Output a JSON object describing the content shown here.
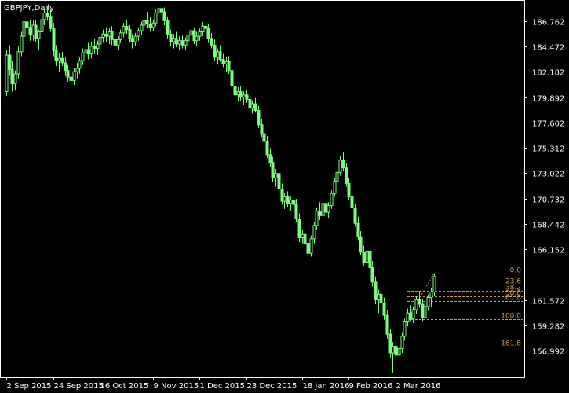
{
  "chart_data": {
    "type": "candlestick",
    "title": "GBPJPY,Daily",
    "y_ticks": [
      "186.762",
      "184.472",
      "182.182",
      "179.892",
      "177.602",
      "175.312",
      "173.022",
      "170.732",
      "168.442",
      "166.152",
      "161.572",
      "159.282",
      "156.992"
    ],
    "x_ticks": [
      "2 Sep 2015",
      "24 Sep 2015",
      "16 Oct 2015",
      "9 Nov 2015",
      "1 Dec 2015",
      "23 Dec 2015",
      "18 Jan 2016",
      "9 Feb 2016",
      "2 Mar 2016"
    ],
    "ylim": [
      154.6,
      188.6
    ],
    "grid": false,
    "colors": {
      "background": "#000000",
      "axis": "#ffffff",
      "candle": "#7cfc7c",
      "fib": "#d39a50"
    },
    "fibonacci": {
      "levels": [
        {
          "label": "0.0",
          "price": 163.98
        },
        {
          "label": "23.6",
          "price": 163.01
        },
        {
          "label": "38.2",
          "price": 162.41
        },
        {
          "label": "50.0",
          "price": 161.93
        },
        {
          "label": "61.8",
          "price": 161.45
        },
        {
          "label": "100.0",
          "price": 159.88
        },
        {
          "label": "161.8",
          "price": 157.35
        }
      ]
    },
    "candles": [
      [
        180.4,
        184.2,
        180.0,
        183.7
      ],
      [
        183.7,
        184.6,
        181.8,
        182.4
      ],
      [
        182.4,
        183.2,
        180.4,
        181.1
      ],
      [
        181.1,
        182.3,
        180.5,
        182.0
      ],
      [
        182.0,
        184.5,
        181.5,
        184.0
      ],
      [
        184.0,
        185.8,
        183.6,
        185.4
      ],
      [
        185.4,
        187.4,
        184.8,
        186.7
      ],
      [
        186.7,
        187.3,
        185.8,
        186.2
      ],
      [
        186.2,
        186.9,
        185.0,
        185.5
      ],
      [
        185.5,
        186.8,
        185.0,
        186.4
      ],
      [
        186.4,
        186.9,
        184.9,
        185.2
      ],
      [
        185.2,
        186.0,
        184.1,
        185.8
      ],
      [
        185.8,
        187.3,
        185.4,
        186.9
      ],
      [
        186.9,
        187.9,
        186.4,
        187.5
      ],
      [
        187.5,
        188.1,
        186.8,
        187.2
      ],
      [
        187.2,
        187.8,
        185.8,
        186.1
      ],
      [
        186.1,
        186.6,
        183.6,
        184.1
      ],
      [
        184.1,
        184.6,
        182.7,
        183.2
      ],
      [
        183.2,
        183.9,
        182.2,
        183.4
      ],
      [
        183.4,
        184.0,
        182.7,
        183.0
      ],
      [
        183.0,
        183.5,
        181.8,
        182.3
      ],
      [
        182.3,
        182.8,
        181.3,
        181.7
      ],
      [
        181.7,
        182.2,
        181.0,
        181.4
      ],
      [
        181.4,
        182.5,
        181.0,
        182.2
      ],
      [
        182.2,
        183.0,
        181.6,
        182.5
      ],
      [
        182.5,
        183.5,
        182.0,
        183.2
      ],
      [
        183.2,
        184.3,
        182.8,
        183.9
      ],
      [
        183.9,
        184.6,
        183.2,
        184.2
      ],
      [
        184.2,
        184.8,
        183.3,
        183.8
      ],
      [
        183.8,
        184.9,
        183.4,
        184.5
      ],
      [
        184.5,
        185.2,
        183.8,
        184.3
      ],
      [
        184.3,
        185.0,
        183.7,
        184.7
      ],
      [
        184.7,
        185.6,
        184.3,
        185.3
      ],
      [
        185.3,
        186.0,
        184.8,
        185.6
      ],
      [
        185.6,
        186.2,
        184.9,
        185.4
      ],
      [
        185.4,
        186.1,
        184.7,
        185.8
      ],
      [
        185.8,
        186.3,
        184.6,
        185.1
      ],
      [
        185.1,
        185.5,
        184.1,
        184.6
      ],
      [
        184.6,
        185.4,
        184.2,
        185.1
      ],
      [
        185.1,
        186.0,
        184.8,
        185.7
      ],
      [
        185.7,
        186.6,
        185.3,
        186.3
      ],
      [
        186.3,
        186.9,
        185.6,
        186.0
      ],
      [
        186.0,
        186.4,
        184.8,
        185.2
      ],
      [
        185.2,
        185.6,
        184.3,
        184.9
      ],
      [
        184.9,
        185.7,
        184.5,
        185.4
      ],
      [
        185.4,
        186.2,
        185.0,
        185.9
      ],
      [
        185.9,
        186.7,
        185.5,
        186.4
      ],
      [
        186.4,
        187.2,
        186.0,
        186.8
      ],
      [
        186.8,
        187.6,
        186.1,
        186.5
      ],
      [
        186.5,
        187.1,
        185.8,
        186.2
      ],
      [
        186.2,
        186.9,
        185.9,
        186.6
      ],
      [
        186.6,
        187.8,
        186.3,
        187.5
      ],
      [
        187.5,
        188.3,
        187.0,
        187.9
      ],
      [
        187.9,
        188.5,
        187.3,
        187.6
      ],
      [
        187.6,
        188.0,
        186.4,
        186.8
      ],
      [
        186.8,
        187.2,
        185.2,
        185.6
      ],
      [
        185.6,
        186.0,
        184.5,
        184.9
      ],
      [
        184.9,
        185.6,
        184.3,
        185.2
      ],
      [
        185.2,
        185.8,
        184.4,
        184.7
      ],
      [
        184.7,
        185.4,
        184.2,
        185.0
      ],
      [
        185.0,
        185.5,
        184.3,
        184.6
      ],
      [
        184.6,
        185.3,
        184.1,
        185.0
      ],
      [
        185.0,
        185.8,
        184.6,
        185.5
      ],
      [
        185.5,
        186.3,
        185.1,
        185.9
      ],
      [
        185.9,
        186.2,
        184.7,
        185.0
      ],
      [
        185.0,
        185.8,
        184.5,
        185.4
      ],
      [
        185.4,
        186.1,
        185.0,
        185.8
      ],
      [
        185.8,
        186.7,
        185.4,
        186.3
      ],
      [
        186.3,
        186.8,
        185.7,
        186.1
      ],
      [
        186.1,
        186.5,
        184.8,
        185.2
      ],
      [
        185.2,
        185.7,
        184.3,
        184.6
      ],
      [
        184.6,
        185.1,
        183.2,
        183.5
      ],
      [
        183.5,
        184.3,
        182.9,
        184.0
      ],
      [
        184.0,
        184.6,
        183.1,
        183.3
      ],
      [
        183.3,
        183.8,
        182.6,
        182.9
      ],
      [
        182.9,
        183.5,
        182.2,
        183.1
      ],
      [
        183.1,
        183.6,
        182.0,
        182.3
      ],
      [
        182.3,
        182.7,
        180.6,
        180.9
      ],
      [
        180.9,
        181.4,
        179.7,
        180.1
      ],
      [
        180.1,
        180.8,
        179.5,
        180.4
      ],
      [
        180.4,
        180.9,
        179.6,
        179.9
      ],
      [
        179.9,
        180.4,
        179.2,
        180.1
      ],
      [
        180.1,
        180.6,
        179.4,
        179.7
      ],
      [
        179.7,
        180.1,
        178.6,
        178.9
      ],
      [
        178.9,
        179.6,
        178.4,
        179.3
      ],
      [
        179.3,
        179.8,
        178.5,
        178.7
      ],
      [
        178.7,
        179.1,
        177.1,
        177.4
      ],
      [
        177.4,
        177.9,
        176.3,
        176.6
      ],
      [
        176.6,
        177.2,
        175.6,
        175.9
      ],
      [
        175.9,
        176.4,
        174.4,
        174.7
      ],
      [
        174.7,
        175.3,
        173.6,
        174.0
      ],
      [
        174.0,
        174.5,
        172.2,
        172.6
      ],
      [
        172.6,
        173.4,
        171.8,
        173.0
      ],
      [
        173.0,
        173.5,
        171.2,
        171.6
      ],
      [
        171.6,
        172.1,
        170.2,
        170.5
      ],
      [
        170.5,
        171.2,
        169.8,
        170.9
      ],
      [
        170.9,
        171.4,
        170.0,
        170.3
      ],
      [
        170.3,
        170.9,
        169.6,
        170.6
      ],
      [
        170.6,
        171.2,
        169.9,
        170.2
      ],
      [
        170.2,
        170.7,
        168.6,
        168.9
      ],
      [
        168.9,
        169.4,
        166.8,
        167.2
      ],
      [
        167.2,
        167.9,
        166.7,
        167.5
      ],
      [
        167.5,
        168.1,
        166.4,
        166.7
      ],
      [
        166.7,
        167.3,
        165.4,
        165.8
      ],
      [
        165.8,
        167.4,
        165.5,
        167.1
      ],
      [
        167.1,
        168.6,
        166.7,
        168.3
      ],
      [
        168.3,
        169.9,
        167.9,
        169.6
      ],
      [
        169.6,
        170.4,
        168.8,
        169.2
      ],
      [
        169.2,
        170.7,
        168.9,
        170.3
      ],
      [
        170.3,
        170.9,
        169.2,
        169.5
      ],
      [
        169.5,
        170.4,
        169.0,
        170.1
      ],
      [
        170.1,
        171.5,
        169.8,
        171.2
      ],
      [
        171.2,
        172.6,
        170.9,
        172.3
      ],
      [
        172.3,
        173.6,
        171.8,
        173.1
      ],
      [
        173.1,
        174.6,
        172.8,
        174.2
      ],
      [
        174.2,
        174.9,
        173.2,
        173.5
      ],
      [
        173.5,
        173.9,
        171.8,
        172.1
      ],
      [
        172.1,
        172.6,
        170.6,
        170.9
      ],
      [
        170.9,
        171.4,
        169.6,
        169.9
      ],
      [
        169.9,
        170.3,
        168.2,
        168.5
      ],
      [
        168.5,
        169.1,
        167.0,
        167.3
      ],
      [
        167.3,
        167.8,
        165.6,
        165.9
      ],
      [
        165.9,
        166.5,
        164.6,
        165.0
      ],
      [
        165.0,
        166.3,
        164.7,
        166.0
      ],
      [
        166.0,
        166.7,
        164.2,
        164.5
      ],
      [
        164.5,
        165.1,
        162.8,
        163.2
      ],
      [
        163.2,
        163.7,
        161.2,
        161.6
      ],
      [
        161.6,
        162.5,
        160.4,
        162.1
      ],
      [
        162.1,
        162.8,
        161.0,
        161.3
      ],
      [
        161.3,
        161.8,
        159.8,
        160.2
      ],
      [
        160.2,
        160.7,
        158.1,
        158.5
      ],
      [
        158.5,
        159.0,
        156.4,
        156.8
      ],
      [
        156.8,
        157.8,
        155.0,
        157.4
      ],
      [
        157.4,
        158.2,
        156.2,
        156.6
      ],
      [
        156.6,
        157.6,
        156.1,
        157.2
      ],
      [
        157.2,
        158.6,
        156.8,
        158.3
      ],
      [
        158.3,
        159.9,
        157.9,
        159.6
      ],
      [
        159.6,
        160.8,
        159.2,
        160.4
      ],
      [
        160.4,
        161.1,
        159.6,
        159.9
      ],
      [
        159.9,
        161.0,
        159.5,
        160.7
      ],
      [
        160.7,
        161.9,
        160.3,
        161.6
      ],
      [
        161.6,
        162.4,
        160.9,
        161.2
      ],
      [
        161.2,
        161.7,
        159.6,
        160.0
      ],
      [
        160.0,
        161.3,
        159.7,
        161.0
      ],
      [
        161.0,
        162.1,
        160.6,
        161.8
      ],
      [
        161.8,
        162.7,
        161.0,
        162.3
      ],
      [
        162.3,
        164.0,
        161.9,
        163.7
      ]
    ]
  }
}
